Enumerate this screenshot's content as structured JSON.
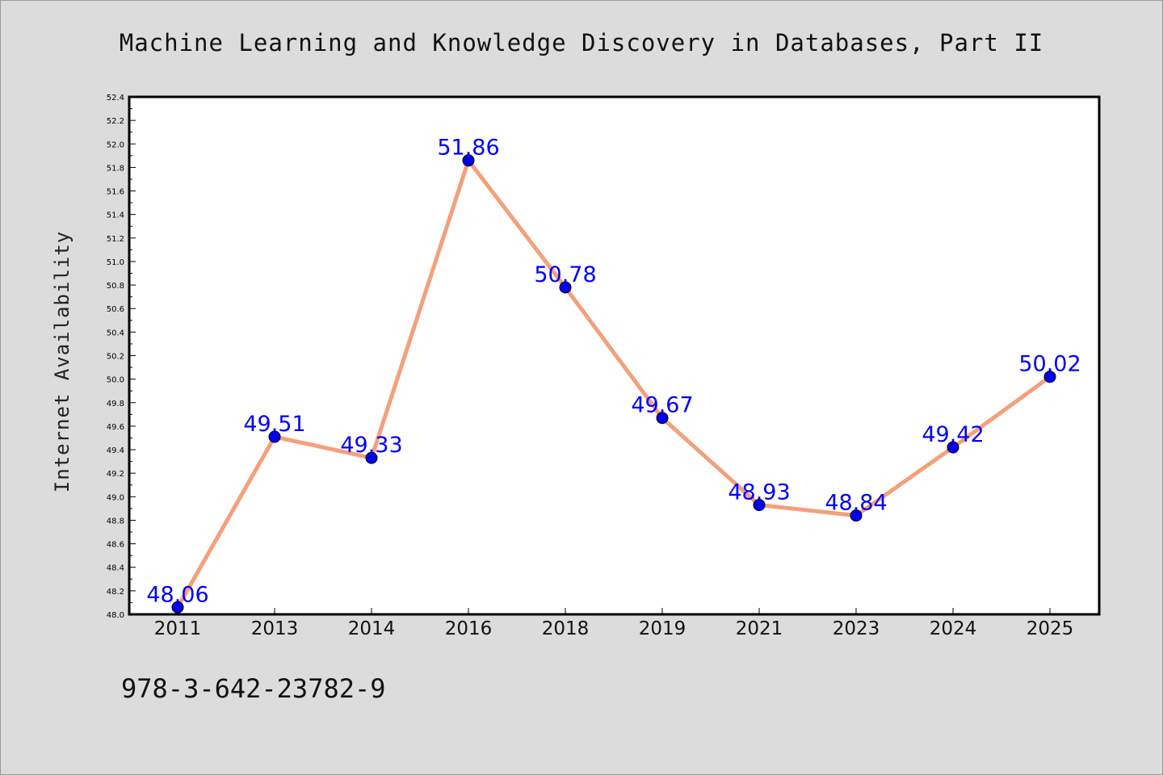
{
  "chart_data": {
    "type": "line",
    "title": "Machine Learning and Knowledge Discovery in Databases, Part II",
    "xlabel": "",
    "ylabel": "Internet Availability",
    "categories": [
      "2011",
      "2013",
      "2014",
      "2016",
      "2018",
      "2019",
      "2021",
      "2023",
      "2024",
      "2025"
    ],
    "series": [
      {
        "values": [
          48.06,
          49.51,
          49.33,
          51.86,
          50.78,
          49.67,
          48.93,
          48.84,
          49.42,
          50.02
        ]
      }
    ],
    "data_labels": [
      "48.06",
      "49.51",
      "49.33",
      "51.86",
      "50.78",
      "49.67",
      "48.93",
      "48.84",
      "49.42",
      "50.02"
    ],
    "ylim": [
      48.0,
      52.4
    ],
    "yticks": [
      "48.0",
      "48.2",
      "48.4",
      "48.6",
      "48.8",
      "49.0",
      "49.2",
      "49.4",
      "49.6",
      "49.8",
      "50.0",
      "50.2",
      "50.4",
      "50.6",
      "50.8",
      "51.0",
      "51.2",
      "51.4",
      "51.6",
      "51.8",
      "52.0",
      "52.2",
      "52.4"
    ],
    "grid": false,
    "legend": "none",
    "colors": {
      "line": "#f4a07c",
      "marker": "#0000ee",
      "marker_edge": "#000000",
      "label": "#0000ff",
      "plot_bg": "#ffffff",
      "page_bg": "#dcdcdc"
    }
  },
  "footer": {
    "isbn": "978-3-642-23782-9"
  }
}
